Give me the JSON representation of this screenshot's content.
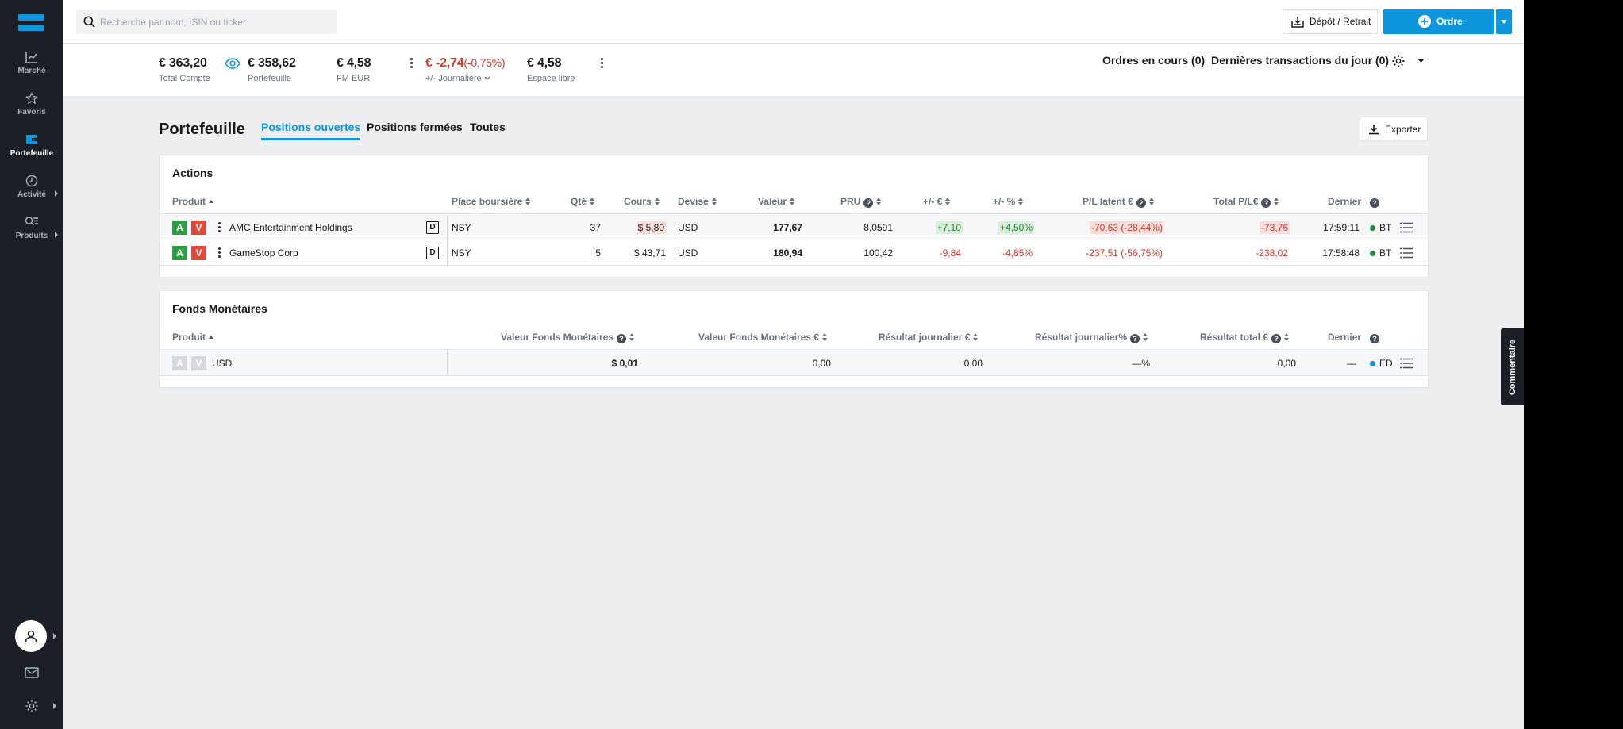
{
  "sidebar": {
    "items": [
      {
        "label": "Marché",
        "icon": "chart-line-icon"
      },
      {
        "label": "Favoris",
        "icon": "star-icon"
      },
      {
        "label": "Portefeuille",
        "icon": "wallet-icon"
      },
      {
        "label": "Activité",
        "icon": "clock-icon"
      },
      {
        "label": "Produits",
        "icon": "search-list-icon"
      }
    ]
  },
  "topbar": {
    "search_placeholder": "Recherche par nom, ISIN ou ticker",
    "depot_label": "Dépôt / Retrait",
    "ordre_label": "Ordre"
  },
  "account": {
    "total_value": "€ 363,20",
    "total_label": "Total Compte",
    "portfolio_value": "€ 358,62",
    "portfolio_label": "Portefeuille",
    "fm_value": "€ 4,58",
    "fm_label": "FM EUR",
    "daily_value": "€ -2,74",
    "daily_pct": "(-0,75%)",
    "daily_label": "+/- Journalière",
    "free_value": "€ 4,58",
    "free_label": "Espace libre",
    "orders_link": "Ordres en cours (0)",
    "transactions_link": "Dernières transactions du jour (0)"
  },
  "main": {
    "title": "Portefeuille",
    "tabs": [
      "Positions ouvertes",
      "Positions fermées",
      "Toutes"
    ],
    "export_label": "Exporter"
  },
  "actions": {
    "title": "Actions",
    "headers": {
      "produit": "Produit",
      "place": "Place boursière",
      "qte": "Qté",
      "cours": "Cours",
      "devise": "Devise",
      "valeur": "Valeur",
      "pru": "PRU",
      "pm_eur": "+/- €",
      "pm_pct": "+/- %",
      "pl_latent": "P/L latent €",
      "total_pl": "Total P/L€",
      "dernier": "Dernier"
    },
    "rows": [
      {
        "buy": "A",
        "sell": "V",
        "name": "AMC Entertainment Holdings",
        "badge": "D",
        "place": "NSY",
        "qte": "37",
        "cours": "$ 5,80",
        "devise": "USD",
        "valeur": "177,67",
        "pru": "8,0591",
        "pm_eur": "+7,10",
        "pm_pct": "+4,50%",
        "pl_latent": "-70,63 (-28,44%)",
        "total_pl": "-73,76",
        "time": "17:59:11",
        "venue": "BT"
      },
      {
        "buy": "A",
        "sell": "V",
        "name": "GameStop Corp",
        "badge": "D",
        "place": "NSY",
        "qte": "5",
        "cours": "$ 43,71",
        "devise": "USD",
        "valeur": "180,94",
        "pru": "100,42",
        "pm_eur": "-9,84",
        "pm_pct": "-4,85%",
        "pl_latent": "-237,51 (-56,75%)",
        "total_pl": "-238,02",
        "time": "17:58:48",
        "venue": "BT"
      }
    ]
  },
  "funds": {
    "title": "Fonds Monétaires",
    "headers": {
      "produit": "Produit",
      "valeur_fm": "Valeur Fonds Monétaires",
      "valeur_fm_eur": "Valeur Fonds Monétaires €",
      "res_jour": "Résultat journalier €",
      "res_jour_pct": "Résultat journalier%",
      "res_total": "Résultat total €",
      "dernier": "Dernier"
    },
    "rows": [
      {
        "buy": "A",
        "sell": "V",
        "name": "USD",
        "valeur_fm": "$ 0,01",
        "valeur_fm_eur": "0,00",
        "res_jour": "0,00",
        "res_jour_pct": "—%",
        "res_total": "0,00",
        "dernier": "—",
        "venue": "ED"
      }
    ]
  },
  "comment_tab": "Commentaire",
  "colors": {
    "accent": "#0e96dd",
    "sidebar": "#1b2027",
    "positive": "#1d8a3a",
    "negative": "#d13c2f",
    "buy": "#2e9e44",
    "sell": "#e04a3b"
  }
}
